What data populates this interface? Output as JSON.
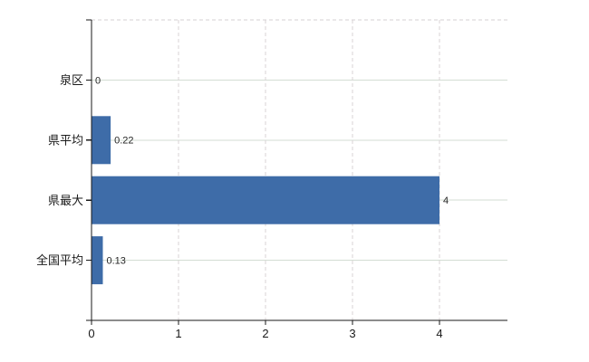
{
  "chart_data": {
    "type": "bar",
    "orientation": "horizontal",
    "title": "",
    "xlabel": "",
    "ylabel": "",
    "categories": [
      "泉区",
      "県平均",
      "県最大",
      "全国平均"
    ],
    "values": [
      0,
      0.22,
      4,
      0.13
    ],
    "data_labels": [
      "0",
      "0.22",
      "4",
      "0.13"
    ],
    "xticks": [
      0,
      1,
      2,
      3,
      4
    ],
    "xtick_labels": [
      "0",
      "1",
      "2",
      "3",
      "4"
    ],
    "xlim": [
      0,
      4.78
    ],
    "grid": true,
    "legend_position": "none",
    "colors": {
      "bar": "#3e6ca8",
      "axis": "#1a1a1a",
      "category_label": "#1a1a1a",
      "tick_label": "#1a1a1a",
      "value_label": "#262626",
      "h_gridline": "#d3ddd3",
      "v_gridline": "#d9d3d6",
      "top_border": "#d5d0d3",
      "background": "#ffffff"
    }
  }
}
